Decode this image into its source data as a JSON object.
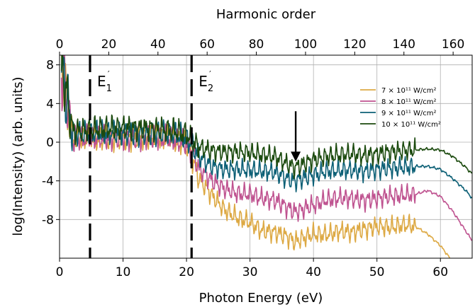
{
  "chart_data": {
    "type": "line",
    "xlabel": "Photon Energy (eV)",
    "ylabel": "log(Intensity) (arb. units)",
    "top_xlabel": "Harmonic order",
    "xlim": [
      0,
      65
    ],
    "ylim": [
      -12,
      9
    ],
    "x_ticks": [
      0,
      10,
      20,
      30,
      40,
      50,
      60
    ],
    "y_ticks": [
      8,
      4,
      0,
      -4,
      -8
    ],
    "y_tick_labels": [
      "8",
      "4",
      "0",
      "-4",
      "-8"
    ],
    "top_ticks": [
      0,
      20,
      40,
      60,
      80,
      100,
      120,
      140,
      160
    ],
    "top_to_energy_factor": 0.3875,
    "grid": true,
    "legend_position": "top-right",
    "vlines": [
      {
        "x": 4.8,
        "label": "E",
        "sub": "1",
        "prime": "′"
      },
      {
        "x": 20.8,
        "label": "E",
        "sub": "2",
        "prime": "′"
      }
    ],
    "arrow": {
      "x": 37.2,
      "y_from": 3.2,
      "y_to": -2.0
    },
    "series": [
      {
        "name": "7 × 10¹¹ W/cm²",
        "color": "#DDA944",
        "x": [
          0.3,
          2,
          5,
          10,
          15,
          18,
          20,
          21,
          22,
          24,
          26,
          28,
          30,
          32,
          34,
          36,
          37,
          38,
          40,
          42,
          44,
          46,
          48,
          50,
          52,
          54,
          55,
          56,
          58,
          60,
          61.5
        ],
        "y": [
          8.2,
          0.3,
          0.4,
          0.5,
          0.4,
          0.3,
          -0.2,
          -1.8,
          -3.8,
          -5.5,
          -7.0,
          -7.8,
          -8.3,
          -9.2,
          -9.3,
          -9.8,
          -10.3,
          -10.0,
          -9.5,
          -9.6,
          -9.2,
          -9.3,
          -9.0,
          -8.7,
          -8.8,
          -8.6,
          -8.6,
          -8.7,
          -9.5,
          -10.7,
          -12.0
        ]
      },
      {
        "name": "8 × 10¹¹ W/cm²",
        "color": "#BF5390",
        "x": [
          0.3,
          2,
          5,
          10,
          15,
          18,
          20,
          21,
          22,
          24,
          26,
          28,
          30,
          32,
          34,
          36,
          37,
          38,
          40,
          42,
          44,
          46,
          48,
          50,
          52,
          54,
          56,
          58,
          60,
          62,
          64,
          65
        ],
        "y": [
          8.2,
          0.3,
          0.4,
          0.5,
          0.4,
          0.3,
          -0.2,
          -1.0,
          -2.8,
          -4.0,
          -4.8,
          -5.3,
          -5.4,
          -5.8,
          -6.0,
          -6.8,
          -7.2,
          -7.0,
          -6.5,
          -6.0,
          -5.8,
          -5.8,
          -6.0,
          -5.8,
          -5.6,
          -5.5,
          -5.4,
          -5.0,
          -5.6,
          -7.2,
          -9.2,
          -10.2
        ]
      },
      {
        "name": "9 × 10¹¹ W/cm²",
        "color": "#0D6076",
        "x": [
          0.3,
          2,
          5,
          10,
          15,
          18,
          20,
          21,
          22,
          24,
          26,
          28,
          30,
          32,
          34,
          36,
          37,
          38,
          40,
          42,
          44,
          46,
          48,
          50,
          52,
          54,
          56,
          58,
          60,
          62,
          64,
          65
        ],
        "y": [
          8.2,
          0.8,
          0.9,
          1.0,
          0.9,
          0.8,
          0.4,
          -0.5,
          -1.5,
          -2.5,
          -2.8,
          -2.8,
          -2.9,
          -3.0,
          -3.1,
          -3.8,
          -4.0,
          -3.8,
          -3.4,
          -3.0,
          -2.9,
          -2.9,
          -3.0,
          -2.8,
          -2.7,
          -2.6,
          -2.5,
          -2.5,
          -2.8,
          -3.8,
          -5.0,
          -5.8
        ]
      },
      {
        "name": "10 × 10¹¹ W/cm²",
        "color": "#1B4A0E",
        "x": [
          0.3,
          2,
          5,
          10,
          15,
          18,
          20,
          21,
          22,
          24,
          26,
          28,
          30,
          32,
          34,
          36,
          37,
          38,
          40,
          42,
          44,
          46,
          48,
          50,
          52,
          54,
          56,
          58,
          60,
          62,
          64,
          65
        ],
        "y": [
          8.2,
          1.2,
          1.3,
          1.5,
          1.4,
          1.2,
          0.8,
          0.0,
          -0.5,
          -0.9,
          -1.0,
          -1.0,
          -1.1,
          -1.3,
          -1.5,
          -2.3,
          -2.6,
          -2.4,
          -1.8,
          -1.5,
          -1.3,
          -1.2,
          -1.4,
          -1.2,
          -1.0,
          -0.9,
          -0.8,
          -0.7,
          -0.8,
          -1.5,
          -2.6,
          -3.3
        ]
      }
    ]
  }
}
